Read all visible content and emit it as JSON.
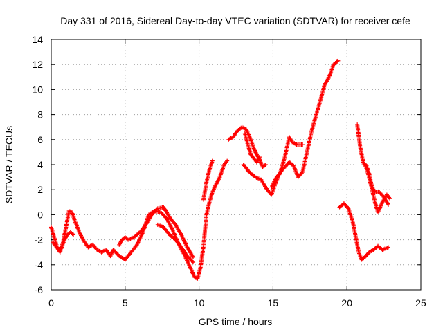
{
  "chart_data": {
    "type": "scatter",
    "title": "Day 331 of 2016, Sidereal Day-to-day VTEC variation (SDTVAR) for receiver cefe",
    "xlabel": "GPS time / hours",
    "ylabel": "SDTVAR / TECUs",
    "xlim": [
      0,
      25
    ],
    "ylim": [
      -6,
      14
    ],
    "xticks": [
      0,
      5,
      10,
      15,
      20,
      25
    ],
    "yticks": [
      -6,
      -4,
      -2,
      0,
      2,
      4,
      6,
      8,
      10,
      12,
      14
    ],
    "grid": true,
    "marker": "plus",
    "color": "#ff0000",
    "series": [
      {
        "name": "seg1",
        "x": [
          0.0,
          0.2,
          0.4,
          0.6,
          0.8,
          1.0,
          1.2,
          1.4,
          1.6,
          1.9,
          2.2,
          2.5,
          2.8,
          3.1,
          3.4,
          3.7,
          4.0,
          4.2
        ],
        "y": [
          -1.0,
          -1.8,
          -2.6,
          -3.0,
          -2.2,
          -1.0,
          0.3,
          0.2,
          -0.5,
          -1.4,
          -2.1,
          -2.6,
          -2.4,
          -2.8,
          -3.0,
          -2.8,
          -3.3,
          -2.8
        ]
      },
      {
        "name": "seg2",
        "x": [
          0.1,
          0.3,
          0.5,
          0.7,
          0.9,
          1.1,
          1.3,
          1.5
        ],
        "y": [
          -2.2,
          -2.5,
          -2.8,
          -2.6,
          -2.0,
          -1.6,
          -1.4,
          -1.6
        ]
      },
      {
        "name": "seg3",
        "x": [
          4.2,
          4.6,
          5.0,
          5.4,
          5.8,
          6.2,
          6.6,
          7.0,
          7.4,
          7.8,
          8.2,
          8.6,
          9.0,
          9.4,
          9.7,
          9.9,
          10.1,
          10.3,
          10.5,
          10.7,
          10.9,
          11.1,
          11.4,
          11.7,
          11.9
        ],
        "y": [
          -2.8,
          -3.3,
          -3.6,
          -3.0,
          -2.4,
          -1.4,
          0.0,
          0.3,
          0.2,
          -0.3,
          -1.2,
          -2.3,
          -3.2,
          -4.2,
          -5.0,
          -5.1,
          -4.2,
          -2.5,
          0.0,
          1.0,
          1.8,
          2.3,
          3.0,
          4.0,
          4.3
        ]
      },
      {
        "name": "seg4",
        "x": [
          4.6,
          4.8,
          5.0,
          5.2,
          5.6,
          6.0,
          6.4,
          6.8,
          7.2,
          7.6,
          8.0,
          8.4,
          8.8,
          9.2,
          9.6
        ],
        "y": [
          -2.4,
          -2.0,
          -1.8,
          -2.0,
          -1.8,
          -1.4,
          -0.8,
          0.0,
          0.5,
          0.6,
          -0.2,
          -0.8,
          -1.6,
          -2.6,
          -3.4
        ]
      },
      {
        "name": "seg5",
        "x": [
          7.2,
          7.6,
          8.0,
          8.4,
          8.8,
          9.2,
          9.6
        ],
        "y": [
          -0.8,
          -1.0,
          -1.6,
          -2.0,
          -2.6,
          -3.3,
          -3.8
        ]
      },
      {
        "name": "seg6",
        "x": [
          10.3,
          10.5,
          10.7,
          10.9
        ],
        "y": [
          1.2,
          2.6,
          3.6,
          4.3
        ]
      },
      {
        "name": "seg7",
        "x": [
          12.0,
          12.3,
          12.6,
          12.9,
          13.2,
          13.5,
          13.7,
          13.9,
          14.1,
          14.3,
          14.5
        ],
        "y": [
          6.0,
          6.2,
          6.7,
          7.0,
          6.8,
          6.0,
          5.3,
          4.8,
          4.4,
          3.8,
          4.0
        ]
      },
      {
        "name": "seg8",
        "x": [
          13.1,
          13.3,
          13.5,
          13.7,
          13.9,
          14.1
        ],
        "y": [
          6.5,
          5.6,
          4.8,
          4.5,
          4.2,
          4.6
        ]
      },
      {
        "name": "seg9",
        "x": [
          13.0,
          13.4,
          13.8,
          14.2,
          14.6,
          14.9,
          15.2,
          15.5,
          15.8,
          16.1,
          16.3,
          16.6,
          17.0
        ],
        "y": [
          4.0,
          3.4,
          3.0,
          2.8,
          2.0,
          1.6,
          2.6,
          3.4,
          4.6,
          6.2,
          5.8,
          5.6,
          5.6
        ]
      },
      {
        "name": "seg10",
        "x": [
          14.9,
          15.2,
          15.5,
          15.8,
          16.1,
          16.4,
          16.7,
          17.0,
          17.3,
          17.6,
          17.9,
          18.2,
          18.5,
          18.8,
          19.1,
          19.4
        ],
        "y": [
          2.2,
          2.9,
          3.4,
          3.8,
          4.2,
          3.9,
          3.0,
          3.4,
          5.0,
          6.6,
          7.9,
          9.1,
          10.4,
          11.0,
          12.0,
          12.3
        ]
      },
      {
        "name": "seg11",
        "x": [
          19.5,
          19.8,
          20.1,
          20.4,
          20.6,
          20.8,
          21.0,
          21.2,
          21.5,
          21.8,
          22.1,
          22.4,
          22.8
        ],
        "y": [
          0.6,
          0.9,
          0.5,
          -0.6,
          -1.8,
          -3.0,
          -3.6,
          -3.4,
          -3.0,
          -2.8,
          -2.5,
          -2.8,
          -2.6
        ]
      },
      {
        "name": "seg12",
        "x": [
          20.7,
          20.9,
          21.1,
          21.3,
          21.5,
          21.7,
          21.9,
          22.1,
          22.4,
          22.7,
          22.9
        ],
        "y": [
          7.2,
          5.4,
          4.2,
          3.8,
          3.0,
          2.0,
          1.0,
          0.2,
          1.0,
          1.6,
          1.3
        ]
      },
      {
        "name": "seg13",
        "x": [
          21.3,
          21.5,
          21.7,
          21.9,
          22.2,
          22.5,
          22.8
        ],
        "y": [
          4.0,
          3.3,
          2.2,
          1.8,
          1.8,
          1.4,
          0.8
        ]
      }
    ]
  }
}
